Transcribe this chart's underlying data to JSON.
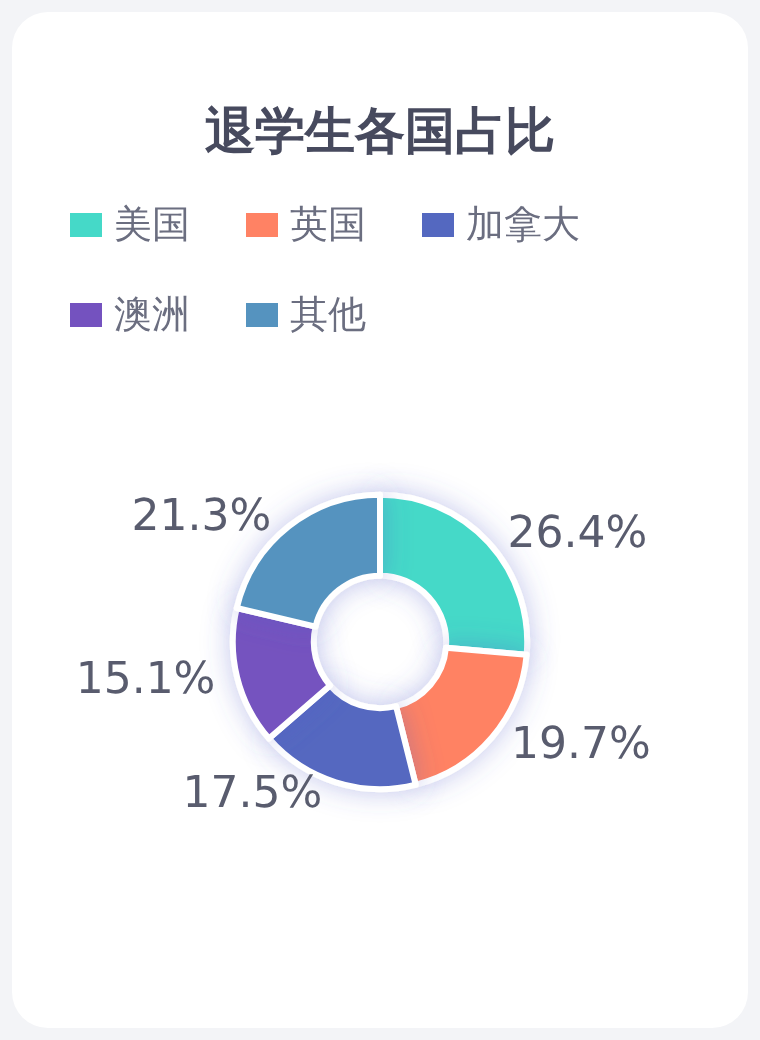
{
  "chart_data": {
    "type": "donut",
    "title": "退学生各国占比",
    "categories": [
      "美国",
      "英国",
      "加拿大",
      "澳洲",
      "其他"
    ],
    "values": [
      26.4,
      19.7,
      17.5,
      15.1,
      21.3
    ],
    "colors": [
      "#45d9c8",
      "#ff8264",
      "#5468c0",
      "#7452bf",
      "#5593bf"
    ],
    "value_labels": [
      "26.4%",
      "19.7%",
      "17.5%",
      "15.1%",
      "21.3%"
    ],
    "legend": "top"
  }
}
